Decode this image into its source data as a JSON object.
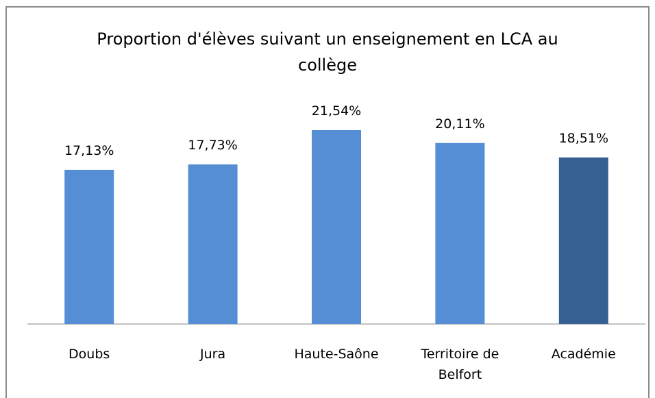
{
  "chart_data": {
    "type": "bar",
    "title": "Proportion d'élèves suivant un enseignement en LCA au collège",
    "categories": [
      "Doubs",
      "Jura",
      "Haute-Saône",
      "Territoire de Belfort",
      "Académie"
    ],
    "values": [
      17.13,
      17.73,
      21.54,
      20.11,
      18.51
    ],
    "value_labels": [
      "17,13%",
      "17,73%",
      "21,54%",
      "20,11%",
      "18,51%"
    ],
    "colors": [
      "#558ed5",
      "#558ed5",
      "#558ed5",
      "#558ed5",
      "#376092"
    ]
  }
}
